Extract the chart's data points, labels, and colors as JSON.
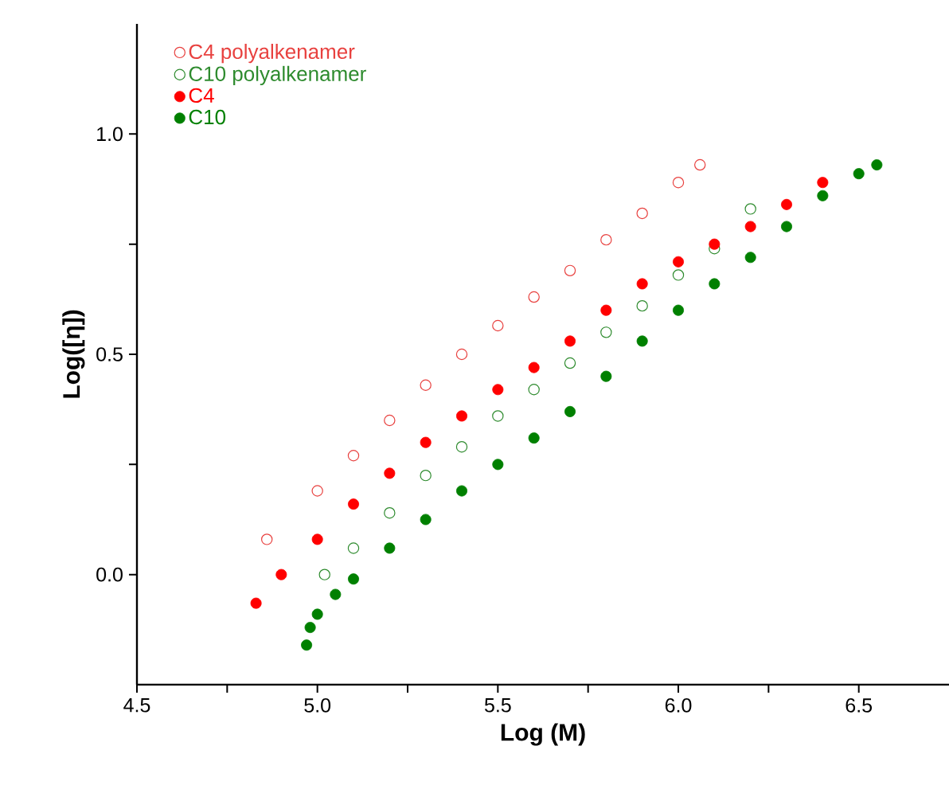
{
  "chart_data": {
    "type": "scatter",
    "xlabel": "Log (M)",
    "ylabel": "Log([η])",
    "xlim": [
      4.5,
      6.75
    ],
    "ylim": [
      -0.25,
      1.25
    ],
    "xticks": [
      {
        "value": 4.5,
        "label": "4.5"
      },
      {
        "value": 4.75,
        "label": null
      },
      {
        "value": 5.0,
        "label": "5.0"
      },
      {
        "value": 5.25,
        "label": null
      },
      {
        "value": 5.5,
        "label": "5.5"
      },
      {
        "value": 5.75,
        "label": null
      },
      {
        "value": 6.0,
        "label": "6.0"
      },
      {
        "value": 6.25,
        "label": null
      },
      {
        "value": 6.5,
        "label": "6.5"
      }
    ],
    "yticks": [
      {
        "value": 0.0,
        "label": "0.0"
      },
      {
        "value": 0.25,
        "label": null
      },
      {
        "value": 0.5,
        "label": "0.5"
      },
      {
        "value": 0.75,
        "label": null
      },
      {
        "value": 1.0,
        "label": "1.0"
      }
    ],
    "grid": false,
    "legend": "top left",
    "series": [
      {
        "name": "C4 polyalkenamer",
        "color": "#e8413f",
        "marker": "circle_open",
        "x": [
          4.86,
          5.0,
          5.1,
          5.2,
          5.3,
          5.4,
          5.5,
          5.6,
          5.7,
          5.8,
          5.9,
          6.0,
          6.06
        ],
        "values": [
          0.08,
          0.19,
          0.27,
          0.35,
          0.43,
          0.5,
          0.565,
          0.63,
          0.69,
          0.76,
          0.82,
          0.89,
          0.93
        ]
      },
      {
        "name": "C10 polyalkenamer",
        "color": "#2e8b2e",
        "marker": "circle_open",
        "x": [
          5.02,
          5.1,
          5.2,
          5.3,
          5.4,
          5.5,
          5.6,
          5.7,
          5.8,
          5.9,
          6.0,
          6.1,
          6.2
        ],
        "values": [
          0.0,
          0.06,
          0.14,
          0.225,
          0.29,
          0.36,
          0.42,
          0.48,
          0.55,
          0.61,
          0.68,
          0.74,
          0.83
        ]
      },
      {
        "name": "C4",
        "color": "#ff0000",
        "marker": "circle",
        "x": [
          4.83,
          4.9,
          5.0,
          5.1,
          5.2,
          5.3,
          5.4,
          5.5,
          5.6,
          5.7,
          5.8,
          5.9,
          6.0,
          6.1,
          6.2,
          6.3,
          6.4
        ],
        "values": [
          -0.065,
          0.0,
          0.08,
          0.16,
          0.23,
          0.3,
          0.36,
          0.42,
          0.47,
          0.53,
          0.6,
          0.66,
          0.71,
          0.75,
          0.79,
          0.84,
          0.89
        ]
      },
      {
        "name": "C10",
        "color": "#008000",
        "marker": "circle",
        "x": [
          4.97,
          4.98,
          5.0,
          5.05,
          5.1,
          5.2,
          5.3,
          5.4,
          5.5,
          5.6,
          5.7,
          5.8,
          5.9,
          6.0,
          6.1,
          6.2,
          6.3,
          6.4,
          6.5,
          6.55
        ],
        "values": [
          -0.16,
          -0.12,
          -0.09,
          -0.045,
          -0.01,
          0.06,
          0.125,
          0.19,
          0.25,
          0.31,
          0.37,
          0.45,
          0.53,
          0.6,
          0.66,
          0.72,
          0.79,
          0.86,
          0.91,
          0.93
        ]
      }
    ]
  }
}
